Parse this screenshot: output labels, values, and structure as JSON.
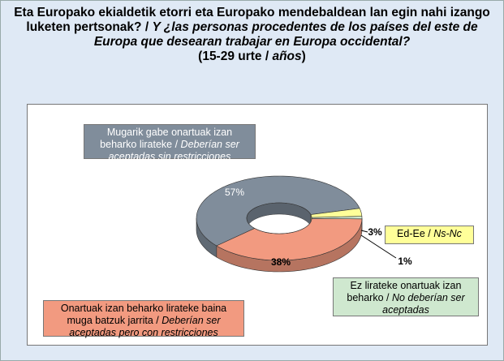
{
  "chart_data": {
    "type": "donut",
    "title_parts": [
      "Eta Europako ekialdetik etorri eta Europako mendebaldean lan egin nahi izango luketen pertsonak? /",
      "Y ¿las personas procedentes de los países del este de Europa que desearan trabajar en Europa occidental?",
      "(15-29 urte / ",
      "años",
      ")"
    ],
    "categories": [
      {
        "eu": "Mugarik gabe onartuak izan beharko lirateke /",
        "es": "Deberían ser aceptadas sin restricciones"
      },
      {
        "eu": "Onartuak izan beharko lirateke baina muga batzuk jarrita /",
        "es": "Deberían ser aceptadas pero con restricciones"
      },
      {
        "eu": "Ez lirateke onartuak izan beharko /",
        "es": "No deberían ser aceptadas"
      },
      {
        "eu": "Ed-Ee /",
        "es": "Ns-Nc"
      }
    ],
    "values": [
      57,
      38,
      1,
      3
    ],
    "value_labels": [
      "57%",
      "38%",
      "1%",
      "3%"
    ],
    "colors": [
      "#808d9b",
      "#f29a80",
      "#cfe8cf",
      "#ffff99"
    ]
  }
}
